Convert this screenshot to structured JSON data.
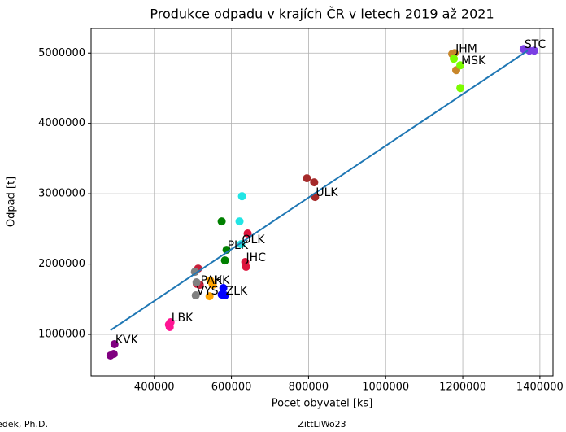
{
  "chart_data": {
    "type": "scatter",
    "title": "Produkce odpadu v krajích ČR v letech 2019 až 2021",
    "x_label": "Pocet obyvatel [ks]",
    "y_label": "Odpad [t]",
    "xlim": [
      236000,
      1434000
    ],
    "ylim": [
      410000,
      5350000
    ],
    "xticks": [
      400000,
      600000,
      800000,
      1000000,
      1200000,
      1400000
    ],
    "yticks": [
      1000000,
      2000000,
      3000000,
      4000000,
      5000000
    ],
    "grid": true,
    "series": [
      {
        "name": "STC",
        "color": "#7b3fe4",
        "x": [
          1357900,
          1372600,
          1385300
        ],
        "values": [
          5058000,
          5035000,
          5035000
        ]
      },
      {
        "name": "JHM",
        "color": "#c8862a",
        "x": [
          1179000,
          1183000,
          1172600
        ],
        "values": [
          5000000,
          4757000,
          4988000
        ]
      },
      {
        "name": "MSK",
        "color": "#7cfc00",
        "x": [
          1193700,
          1176800,
          1193700
        ],
        "values": [
          4827000,
          4919000,
          4503000
        ]
      },
      {
        "name": "ULK",
        "color": "#a52a2a",
        "x": [
          816800,
          795800,
          814700
        ],
        "values": [
          2954000,
          3220000,
          3162000
        ]
      },
      {
        "name": "OLK",
        "color": "#22e5e5",
        "x": [
          625200,
          627400,
          621000
        ],
        "values": [
          2283000,
          2965000,
          2607000
        ]
      },
      {
        "name": "PLK",
        "color": "#008000",
        "x": [
          587400,
          574700,
          583200
        ],
        "values": [
          2202000,
          2607000,
          2052000
        ]
      },
      {
        "name": "JHC",
        "color": "#dc143c",
        "x": [
          635800,
          642100,
          637900
        ],
        "values": [
          2029000,
          2434000,
          1960000
        ]
      },
      {
        "name": "PAK",
        "color": "#c71f3a",
        "x": [
          517900,
          513700,
          510000
        ],
        "values": [
          1705000,
          1936000,
          1720000
        ]
      },
      {
        "name": "VYS",
        "color": "#808080",
        "x": [
          507400,
          505300,
          509500
        ],
        "values": [
          1555000,
          1890000,
          1740000
        ]
      },
      {
        "name": "HK",
        "color": "#ffa500",
        "x": [
          551600,
          545300,
          543200
        ],
        "values": [
          1705000,
          1763000,
          1543000
        ]
      },
      {
        "name": "ZLK",
        "color": "#0000ff",
        "x": [
          583200,
          579000,
          574700
        ],
        "values": [
          1555000,
          1659000,
          1566000
        ]
      },
      {
        "name": "LBK",
        "color": "#ff1493",
        "x": [
          442100,
          437900,
          440000
        ],
        "values": [
          1173000,
          1139000,
          1104000
        ]
      },
      {
        "name": "KVK",
        "color": "#800080",
        "x": [
          296800,
          286300,
          294700
        ],
        "values": [
          861000,
          699000,
          722000
        ]
      }
    ],
    "fit": {
      "color": "#1f77b4",
      "x": [
        286300,
        1368400
      ],
      "values": [
        1058000,
        5035000
      ]
    },
    "footer_left": "edek, Ph.D.",
    "footer_center": "ZittLiWo23"
  }
}
